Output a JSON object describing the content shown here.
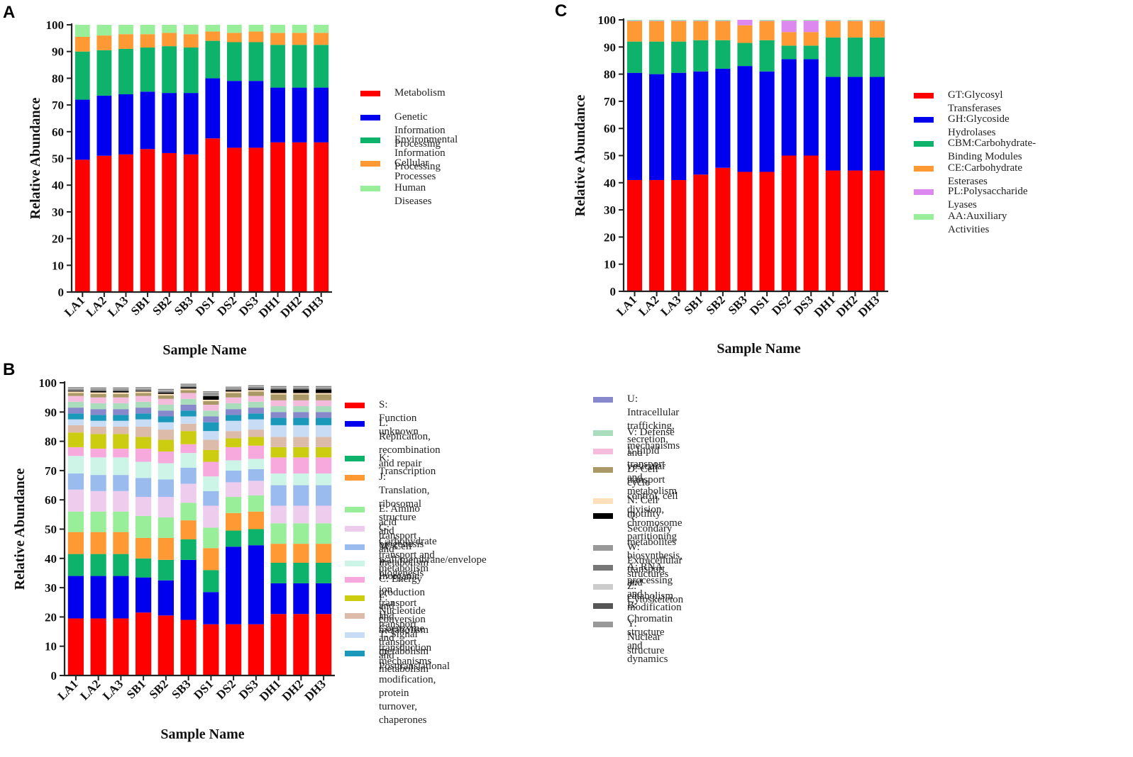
{
  "panel_labels": [
    "A",
    "C",
    "B"
  ],
  "chart_data": [
    {
      "id": "A",
      "type": "bar",
      "stacked": true,
      "title": "",
      "xlabel": "Sample Name",
      "ylabel": "Relative Abundance",
      "ylim": [
        0,
        100
      ],
      "yticks": [
        0,
        10,
        20,
        30,
        40,
        50,
        60,
        70,
        80,
        90,
        100
      ],
      "categories": [
        "LA1",
        "LA2",
        "LA3",
        "SB1",
        "SB2",
        "SB3",
        "DS1",
        "DS2",
        "DS3",
        "DH1",
        "DH2",
        "DH3"
      ],
      "series": [
        {
          "name": "Metabolism",
          "color": "#ff0000",
          "values": [
            49.5,
            51,
            51.5,
            53.5,
            52,
            51.5,
            57.5,
            54,
            54,
            56,
            56,
            56
          ]
        },
        {
          "name": "Genetic Information Processing",
          "color": "#0000ee",
          "values": [
            22.5,
            22.5,
            22.5,
            21.5,
            22.5,
            23,
            22.5,
            25,
            25,
            20.5,
            20.5,
            20.5
          ]
        },
        {
          "name": "Environmental Information Processing",
          "color": "#0db36b",
          "values": [
            18,
            17,
            17,
            16.5,
            17.5,
            17,
            14,
            14.5,
            14.5,
            16,
            16,
            16
          ]
        },
        {
          "name": "Cellular Processes",
          "color": "#ff9933",
          "values": [
            5.5,
            5.5,
            5.5,
            5,
            5,
            5,
            3.5,
            3.5,
            4,
            4.5,
            4.5,
            4.5
          ]
        },
        {
          "name": "Human Diseases",
          "color": "#99ee99",
          "values": [
            4.5,
            4,
            3.5,
            3.5,
            3,
            3.5,
            2.5,
            3,
            2.5,
            3,
            3,
            3
          ]
        }
      ]
    },
    {
      "id": "C",
      "type": "bar",
      "stacked": true,
      "title": "",
      "xlabel": "Sample Name",
      "ylabel": "Relative Abundance",
      "ylim": [
        0,
        100
      ],
      "yticks": [
        0,
        10,
        20,
        30,
        40,
        50,
        60,
        70,
        80,
        90,
        100
      ],
      "categories": [
        "LA1",
        "LA2",
        "LA3",
        "SB1",
        "SB2",
        "SB3",
        "DS1",
        "DS2",
        "DS3",
        "DH1",
        "DH2",
        "DH3"
      ],
      "series": [
        {
          "name": "GT:Glycosyl Transferases",
          "color": "#ff0000",
          "values": [
            41,
            41,
            41,
            43,
            45.5,
            44,
            44,
            50,
            50,
            44.5,
            44.5,
            44.5
          ]
        },
        {
          "name": "GH:Glycoside Hydrolases",
          "color": "#0000ee",
          "values": [
            39.5,
            39,
            39.5,
            38,
            36.5,
            39,
            37,
            35.5,
            35.5,
            34.5,
            34.5,
            34.5
          ]
        },
        {
          "name": "CBM:Carbohydrate-Binding Modules",
          "color": "#0db36b",
          "values": [
            11.5,
            12,
            11.5,
            11.5,
            10.5,
            8.5,
            11.5,
            5,
            5,
            14.5,
            14.5,
            14.5
          ]
        },
        {
          "name": "CE:Carbohydrate Esterases",
          "color": "#ff9933",
          "values": [
            7.5,
            7.5,
            7.5,
            7,
            7,
            6.5,
            7,
            5,
            5,
            6,
            6,
            6
          ]
        },
        {
          "name": "PL:Polysaccharide Lyases",
          "color": "#dd88ee",
          "values": [
            0.2,
            0.2,
            0.2,
            0.2,
            0.2,
            2,
            0.2,
            4.2,
            4.2,
            0.2,
            0.2,
            0.2
          ]
        },
        {
          "name": "AA:Auxiliary Activities",
          "color": "#99ee99",
          "values": [
            0.3,
            0.3,
            0.3,
            0.3,
            0.3,
            0,
            0.3,
            0.3,
            0.3,
            0.3,
            0.3,
            0.3
          ]
        }
      ]
    },
    {
      "id": "B",
      "type": "bar",
      "stacked": true,
      "title": "",
      "xlabel": "Sample Name",
      "ylabel": "Relative Abundance",
      "ylim": [
        0,
        100
      ],
      "yticks": [
        0,
        10,
        20,
        30,
        40,
        50,
        60,
        70,
        80,
        90,
        100
      ],
      "categories": [
        "LA1",
        "LA2",
        "LA3",
        "SB1",
        "SB2",
        "SB3",
        "DS1",
        "DS2",
        "DS3",
        "DH1",
        "DH2",
        "DH3"
      ],
      "series": [
        {
          "name": "S: Function unknown",
          "color": "#ff0000",
          "values": [
            19.5,
            19.5,
            19.5,
            21.5,
            20.5,
            19,
            17.5,
            17.5,
            17.5,
            21,
            21,
            21
          ]
        },
        {
          "name": "L: Replication,\nrecombination and repair",
          "color": "#0000ee",
          "values": [
            14.5,
            14.5,
            14.5,
            12,
            12,
            20.5,
            11,
            26.5,
            27,
            10.5,
            10.5,
            10.5
          ]
        },
        {
          "name": "K: Transcription",
          "color": "#0db36b",
          "values": [
            7.5,
            7.5,
            7.5,
            6.5,
            7,
            7,
            7.5,
            5.5,
            5.5,
            7,
            7,
            7
          ]
        },
        {
          "name": "J: Translation, ribosomal structure\nand biogenesis",
          "color": "#ff9933",
          "values": [
            7.5,
            7.5,
            7.5,
            7,
            7.5,
            6.5,
            7.5,
            6,
            6,
            6.5,
            6.5,
            6.5
          ]
        },
        {
          "name": "E: Amino acid transport and metabolism",
          "color": "#99ee99",
          "values": [
            7,
            7,
            7,
            7.5,
            7,
            6,
            7,
            5.5,
            5.5,
            7,
            7,
            7
          ]
        },
        {
          "name": "G: Carbohydrate transport and metabolism",
          "color": "#eeccee",
          "values": [
            7.5,
            7,
            7,
            6.5,
            7,
            6.5,
            7.5,
            5,
            5,
            6,
            6,
            6
          ]
        },
        {
          "name": "M: Cell wall/membrane/envelope biogenesis",
          "color": "#99bbee",
          "values": [
            5.5,
            5.5,
            5.5,
            6.5,
            6,
            5.5,
            5,
            4,
            4,
            7,
            7,
            7
          ]
        },
        {
          "name": "P: Inorganic ion transport and metabolism",
          "color": "#ccf5e8",
          "values": [
            6,
            6,
            6,
            5.5,
            5.5,
            5,
            5,
            3.5,
            3.5,
            4,
            4,
            4
          ]
        },
        {
          "name": "C: Energy production and conversion",
          "color": "#f7a8dd",
          "values": [
            3,
            3,
            3,
            4.5,
            4,
            3,
            5,
            4.5,
            4.5,
            5.5,
            5.5,
            5.5
          ]
        },
        {
          "name": "F: Nucleotide transport and metabolism",
          "color": "#cccc11",
          "values": [
            5,
            5,
            5,
            4,
            4,
            4.5,
            4,
            3,
            3,
            3.5,
            3.5,
            3.5
          ]
        },
        {
          "name": "H: Coenzyme transport and metabolism",
          "color": "#ddbbaa",
          "values": [
            2.5,
            2.5,
            2.5,
            3.5,
            3.5,
            2.5,
            3.5,
            2.5,
            2.5,
            3.5,
            3.5,
            3.5
          ]
        },
        {
          "name": "T: Signal transduction mechanisms",
          "color": "#c8ddf5",
          "values": [
            2,
            2,
            2,
            2.5,
            2.5,
            2.5,
            3,
            3.5,
            3.5,
            4,
            4,
            4
          ]
        },
        {
          "name": "O: Posttranslational modification,\nprotein turnover, chaperones",
          "color": "#1a99bb",
          "values": [
            2,
            2,
            2,
            2,
            2,
            2,
            3,
            2,
            2,
            2.5,
            2.5,
            2.5
          ]
        },
        {
          "name": "U: Intracellular trafficking, secretion,\nand vesicular transport",
          "color": "#8888cc",
          "values": [
            2,
            2,
            2,
            2,
            2,
            2,
            2,
            2,
            2,
            2,
            2,
            2
          ]
        },
        {
          "name": "V: Defense mechanisms",
          "color": "#aaddbb",
          "values": [
            2,
            2,
            2,
            2,
            2,
            2,
            2,
            2,
            2,
            2,
            2,
            2
          ]
        },
        {
          "name": "I: Lipid transport and metabolism",
          "color": "#f5bbdd",
          "values": [
            2,
            2,
            2,
            2,
            2,
            2,
            2,
            2,
            2,
            2,
            2,
            2
          ]
        },
        {
          "name": "D: Cell cycle control, cell division,\nchromosome partitioning",
          "color": "#aa9966",
          "values": [
            1,
            1.2,
            1.2,
            1,
            1.2,
            1,
            1.2,
            1.5,
            1.5,
            2,
            2,
            2
          ]
        },
        {
          "name": "N: Cell motility",
          "color": "#ffe0bb",
          "values": [
            0.5,
            0.5,
            0.5,
            0.5,
            0.5,
            0.5,
            0.5,
            0.5,
            0.5,
            0.5,
            0.5,
            0.5
          ]
        },
        {
          "name": "Q: Secondary metabolites biosynthesis,\ntransport and catabolism",
          "color": "#000000",
          "values": [
            0.3,
            0.5,
            0.5,
            0.3,
            0.5,
            0.5,
            1.2,
            0.5,
            0.5,
            1.2,
            1.2,
            1.2
          ]
        },
        {
          "name": "W: Extracellular structures",
          "color": "#999999",
          "values": [
            0.3,
            0.3,
            0.3,
            0.3,
            0.3,
            0.3,
            0.8,
            0.3,
            0.3,
            0.3,
            0.3,
            0.3
          ]
        },
        {
          "name": "A: RNA processing and modification",
          "color": "#777777",
          "values": [
            0.3,
            0.3,
            0.3,
            0.3,
            0.3,
            0.3,
            0.3,
            0.3,
            0.3,
            0.3,
            0.3,
            0.3
          ]
        },
        {
          "name": "Z: Cytoskeleton",
          "color": "#cccccc",
          "values": [
            0.3,
            0.3,
            0.3,
            0.3,
            0.3,
            0.3,
            0.3,
            0.3,
            0.3,
            0.3,
            0.3,
            0.3
          ]
        },
        {
          "name": "B: Chromatin structure and dynamics",
          "color": "#555555",
          "values": [
            0.2,
            0.2,
            0.2,
            0.2,
            0.2,
            0.2,
            0.2,
            0.2,
            0.2,
            0.2,
            0.2,
            0.2
          ]
        },
        {
          "name": "Y: Nuclear structure",
          "color": "#999999",
          "values": [
            0.1,
            0.1,
            0.1,
            0.1,
            0.1,
            0.1,
            0.1,
            0.1,
            0.1,
            0.1,
            0.1,
            0.1
          ]
        }
      ]
    }
  ]
}
